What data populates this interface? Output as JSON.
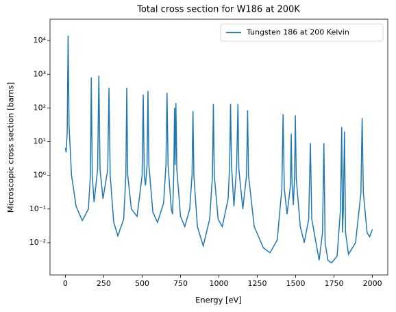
{
  "chart_data": {
    "type": "line",
    "title": "Total cross section for W186 at 200K",
    "xlabel": "Energy [eV]",
    "ylabel": "Microscopic cross section [barns]",
    "yscale": "log",
    "legend": "upper right",
    "xlim": [
      -100,
      2100
    ],
    "ylim": [
      0.0011,
      43000
    ],
    "xticks": [
      0,
      250,
      500,
      750,
      1000,
      1250,
      1500,
      1750,
      2000
    ],
    "yticks": [
      {
        "value": 0.01,
        "label": "10⁻²"
      },
      {
        "value": 0.1,
        "label": "10⁻¹"
      },
      {
        "value": 1,
        "label": "10⁰"
      },
      {
        "value": 10,
        "label": "10¹"
      },
      {
        "value": 100,
        "label": "10²"
      },
      {
        "value": 1000,
        "label": "10³"
      },
      {
        "value": 10000,
        "label": "10⁴"
      }
    ],
    "series": [
      {
        "name": "Tungsten 186 at 200 Kelvin",
        "color": "#1f77b4",
        "x": [
          0,
          5,
          12,
          18,
          24,
          40,
          70,
          110,
          150,
          163,
          169,
          175,
          187,
          210,
          218,
          226,
          245,
          276,
          284,
          292,
          315,
          342,
          380,
          394,
          400,
          406,
          430,
          467,
          500,
          507,
          514,
          522,
          532,
          538,
          544,
          570,
          600,
          640,
          655,
          662,
          669,
          690,
          698,
          706,
          711,
          715,
          720,
          726,
          750,
          778,
          810,
          825,
          831,
          837,
          860,
          898,
          940,
          958,
          964,
          970,
          995,
          1022,
          1060,
          1070,
          1076,
          1082,
          1098,
          1116,
          1124,
          1130,
          1156,
          1180,
          1187,
          1193,
          1230,
          1290,
          1333,
          1380,
          1410,
          1418,
          1426,
          1444,
          1466,
          1471,
          1476,
          1485,
          1493,
          1498,
          1504,
          1530,
          1556,
          1585,
          1596,
          1605,
          1653,
          1675,
          1684,
          1692,
          1710,
          1733,
          1770,
          1792,
          1800,
          1805,
          1810,
          1818,
          1825,
          1844,
          1890,
          1925,
          1933,
          1941,
          1965,
          1982,
          2000
        ],
        "values": [
          6.5,
          4.8,
          20,
          14000,
          30,
          1,
          0.12,
          0.045,
          0.1,
          1,
          800,
          1,
          0.16,
          1.5,
          900,
          1.5,
          0.2,
          1.5,
          400,
          1,
          0.04,
          0.016,
          0.05,
          1,
          400,
          1,
          0.1,
          0.06,
          1,
          250,
          1,
          0.5,
          2,
          320,
          2,
          0.08,
          0.04,
          0.15,
          2,
          280,
          2,
          0.1,
          0.07,
          1,
          100,
          2,
          140,
          1.5,
          0.06,
          0.03,
          0.1,
          1,
          80,
          1,
          0.03,
          0.008,
          0.05,
          1,
          130,
          1,
          0.05,
          0.03,
          0.2,
          2,
          130,
          2,
          0.12,
          2,
          130,
          1.5,
          0.1,
          1,
          85,
          1,
          0.03,
          0.007,
          0.005,
          0.012,
          0.4,
          65,
          0.4,
          0.07,
          0.5,
          17,
          0.6,
          0.13,
          1,
          60,
          0.8,
          0.03,
          0.01,
          0.05,
          9,
          0.05,
          0.003,
          0.02,
          9,
          0.01,
          0.003,
          0.0025,
          0.004,
          0.1,
          27,
          0.02,
          0.08,
          20,
          0.02,
          0.0045,
          0.01,
          0.3,
          50,
          0.3,
          0.02,
          0.015,
          0.025
        ]
      }
    ]
  }
}
